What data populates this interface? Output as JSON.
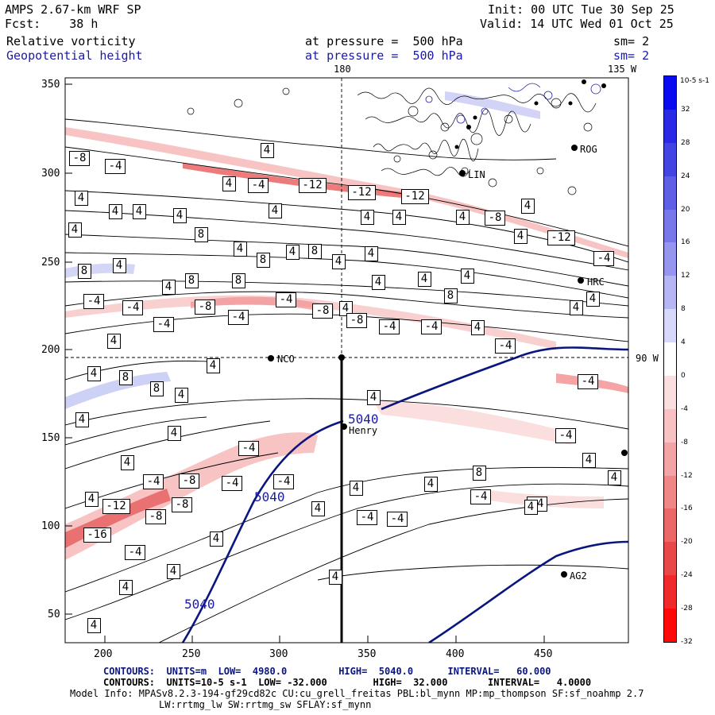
{
  "header": {
    "model": "AMPS 2.67-km WRF SP",
    "init": "Init: 00 UTC Tue 30 Sep 25",
    "fcst": "Fcst:    38 h",
    "valid": "Valid: 14 UTC Wed 01 Oct 25",
    "field1": "Relative vorticity",
    "field1_level": "at pressure =  500 hPa",
    "field1_sm": "sm= 2",
    "field2": "Geopotential height",
    "field2_level": "at pressure =  500 hPa",
    "field2_sm": "sm= 2"
  },
  "map": {
    "meridian_180": "180",
    "meridian_135w": "135 W",
    "parallel_90w": "90 W",
    "x_ticks": [
      "200",
      "250",
      "300",
      "350",
      "400",
      "450"
    ],
    "y_ticks": [
      "350",
      "300",
      "250",
      "200",
      "150",
      "100",
      "50"
    ],
    "stations": [
      "NCO",
      "Henry",
      "ROG",
      "LIN",
      "HRC",
      "AG2"
    ],
    "height_label": "5040",
    "vort_labels": [
      "4",
      "8",
      "-4",
      "-8",
      "-12",
      "-16"
    ]
  },
  "colorbar": {
    "units": "10-5 s-1",
    "ticks": [
      "32",
      "28",
      "24",
      "20",
      "16",
      "12",
      "8",
      "4",
      "0",
      "-4",
      "-8",
      "-12",
      "-16",
      "-20",
      "-24",
      "-28",
      "-32"
    ],
    "colors": [
      "#0a0af0",
      "#2a2ae6",
      "#4444e4",
      "#5e5ee6",
      "#7878ea",
      "#9696ee",
      "#b6b6f4",
      "#d8d8fa",
      "#ffffff",
      "#fbdede",
      "#f8c2c2",
      "#f4a4a4",
      "#f08686",
      "#ec6868",
      "#ea4848",
      "#f02a2a",
      "#ff0808"
    ]
  },
  "footer": {
    "contours1": "CONTOURS:  UNITS=m  LOW=  4980.0         HIGH=  5040.0      INTERVAL=   60.000",
    "contours2": "CONTOURS:  UNITS=10-5 s-1  LOW= -32.000        HIGH=  32.000       INTERVAL=   4.0000",
    "model_info": "Model Info: MPASv8.2.3-194-gf29cd82c CU:cu_grell_freitas PBL:bl_mynn MP:mp_thompson SF:sf_noahmp 2.7",
    "model_info2": "LW:rrtmg_lw SW:rrtmg_sw SFLAY:sf_mynn"
  }
}
